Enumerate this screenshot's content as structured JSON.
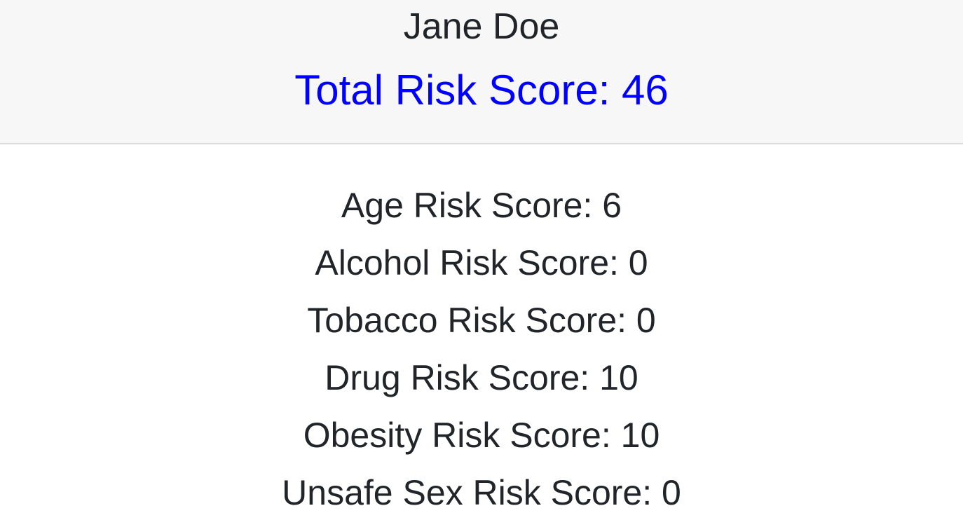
{
  "header": {
    "patient_name": "Jane Doe",
    "total_score_text": "Total Risk Score: 46",
    "total_score_color": "#0000ff"
  },
  "scores": [
    {
      "text": "Age Risk Score: 6"
    },
    {
      "text": "Alcohol Risk Score: 0"
    },
    {
      "text": "Tobacco Risk Score: 0"
    },
    {
      "text": "Drug Risk Score: 10"
    },
    {
      "text": "Obesity Risk Score: 10"
    },
    {
      "text": "Unsafe Sex Risk Score: 0"
    }
  ]
}
